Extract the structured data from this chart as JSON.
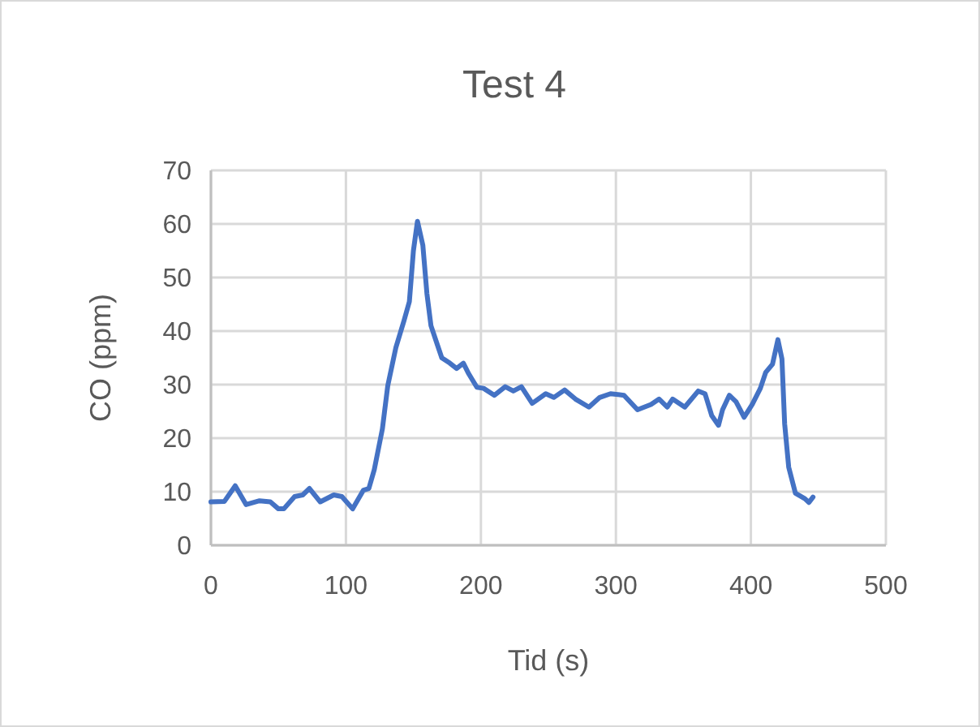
{
  "chart_data": {
    "type": "line",
    "title": "Test 4",
    "xlabel": "Tid (s)",
    "ylabel": "CO (ppm)",
    "xlim": [
      0,
      500
    ],
    "xticks": [
      0,
      100,
      200,
      300,
      400,
      500
    ],
    "ylim": [
      0,
      70
    ],
    "yticks": [
      0,
      10,
      20,
      30,
      40,
      50,
      60,
      70
    ],
    "grid": true,
    "marker": "none",
    "line_style": "solid",
    "series": [
      {
        "color": "#4472c4",
        "x": [
          0,
          10,
          18,
          26,
          36,
          44,
          50,
          54,
          62,
          68,
          73,
          81,
          91,
          97,
          105,
          113,
          117,
          121,
          127,
          131,
          137,
          143,
          147,
          150,
          153,
          157,
          160,
          163,
          167,
          171,
          177,
          182,
          187,
          191,
          197,
          202,
          210,
          218,
          224,
          230,
          238,
          248,
          254,
          262,
          270,
          280,
          288,
          296,
          306,
          316,
          326,
          332,
          338,
          342,
          351,
          361,
          366,
          371,
          376,
          379,
          384,
          389,
          395,
          401,
          407,
          411,
          416,
          420,
          423,
          425,
          428,
          433,
          440,
          443,
          446
        ],
        "values": [
          8.1,
          8.2,
          11.1,
          7.6,
          8.3,
          8.1,
          6.8,
          6.8,
          9.1,
          9.4,
          10.6,
          8.1,
          9.4,
          9.1,
          6.8,
          10.3,
          10.6,
          14.1,
          21.7,
          29.8,
          36.9,
          41.9,
          45.5,
          55,
          60.5,
          56,
          47,
          41,
          38,
          35,
          34,
          33,
          34,
          32,
          29.5,
          29.3,
          28,
          29.6,
          28.8,
          29.6,
          26.5,
          28.3,
          27.6,
          29,
          27.3,
          25.8,
          27.6,
          28.3,
          28,
          25.3,
          26.3,
          27.3,
          25.8,
          27.3,
          25.8,
          28.8,
          28.3,
          24.2,
          22.4,
          25.3,
          28,
          26.8,
          23.9,
          26.3,
          29.3,
          32.3,
          33.8,
          38.4,
          34.8,
          22.7,
          14.6,
          9.7,
          8.7,
          8,
          9
        ]
      }
    ]
  }
}
